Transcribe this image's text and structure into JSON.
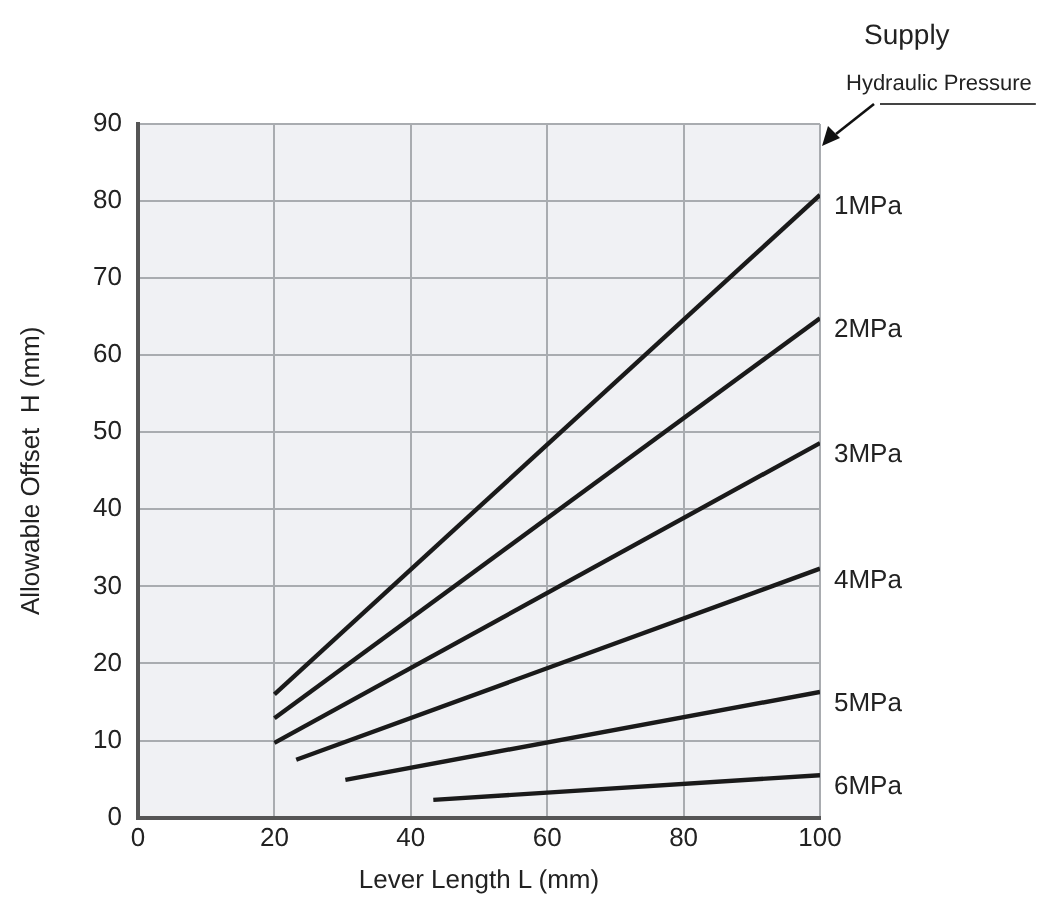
{
  "chart_data": {
    "type": "line",
    "xlabel": "Lever Length L (mm)",
    "ylabel": "Allowable Offset  H (mm)",
    "xlim": [
      0,
      100
    ],
    "xticks": [
      0,
      20,
      40,
      60,
      80,
      100
    ],
    "ylim": [
      0,
      90
    ],
    "yticks": [
      0,
      10,
      20,
      30,
      40,
      50,
      60,
      70,
      80,
      90
    ],
    "grid": true,
    "legend": false,
    "marker": "none",
    "line_style": "solid",
    "annotations": [
      "Supply",
      "Hydraulic Pressure"
    ],
    "series": [
      {
        "name": "1MPa",
        "color": "#1a1a1a",
        "x": [
          20,
          100
        ],
        "values": [
          16,
          80.8
        ]
      },
      {
        "name": "2MPa",
        "color": "#1a1a1a",
        "x": [
          20,
          100
        ],
        "values": [
          12.9,
          64.8
        ]
      },
      {
        "name": "3MPa",
        "color": "#1a1a1a",
        "x": [
          20,
          100
        ],
        "values": [
          9.7,
          48.6
        ]
      },
      {
        "name": "4MPa",
        "color": "#1a1a1a",
        "x": [
          23.2,
          100
        ],
        "values": [
          7.5,
          32.3
        ]
      },
      {
        "name": "5MPa",
        "color": "#1a1a1a",
        "x": [
          30.4,
          100
        ],
        "values": [
          4.9,
          16.3
        ]
      },
      {
        "name": "6MPa",
        "color": "#1a1a1a",
        "x": [
          43.3,
          100
        ],
        "values": [
          2.3,
          5.5
        ]
      }
    ]
  }
}
